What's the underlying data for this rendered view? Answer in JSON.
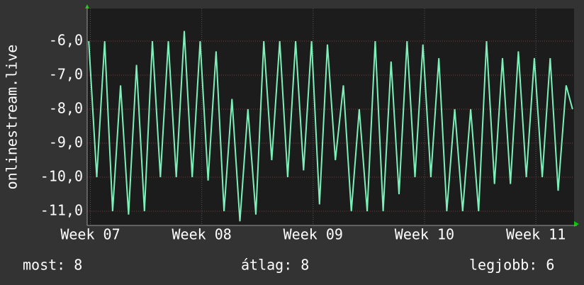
{
  "chart_data": {
    "type": "line",
    "y_label": "onlinestream.live",
    "x": [
      0.1,
      0.6,
      1.1,
      1.6,
      2.1,
      2.6,
      3.1,
      3.6,
      4.1,
      4.6,
      5.1,
      5.6,
      6.1,
      6.6,
      7.1,
      7.6,
      8.1,
      8.6,
      9.1,
      9.6,
      10.1,
      10.6,
      11.1,
      11.6,
      12.1,
      12.6,
      13.1,
      13.6,
      14.1,
      14.6,
      15.1,
      15.6,
      16.1,
      16.6,
      17.1,
      17.6,
      18.1,
      18.6,
      19.1,
      19.6,
      20.1,
      20.6,
      21.1,
      21.6,
      22.1,
      22.6,
      23.1,
      23.6,
      24.1,
      24.6,
      25.1,
      25.6,
      26.1,
      26.6,
      27.1,
      27.6,
      28.1,
      28.6,
      29.1,
      29.6,
      30.1,
      30.5
    ],
    "series": [
      {
        "color": "#7cf0b8",
        "values": [
          -6.0,
          -10.0,
          -6.0,
          -11.0,
          -7.3,
          -11.1,
          -6.7,
          -11.0,
          -6.0,
          -10.0,
          -6.0,
          -10.0,
          -5.7,
          -10.0,
          -6.0,
          -10.1,
          -6.3,
          -11.0,
          -7.7,
          -11.3,
          -8.0,
          -11.1,
          -6.0,
          -9.5,
          -6.0,
          -10.0,
          -6.0,
          -9.8,
          -6.0,
          -10.8,
          -6.1,
          -9.5,
          -7.3,
          -11.0,
          -8.0,
          -11.0,
          -6.0,
          -11.0,
          -6.6,
          -10.5,
          -6.0,
          -10.0,
          -6.1,
          -10.0,
          -6.5,
          -11.0,
          -8.0,
          -11.0,
          -8.0,
          -11.0,
          -6.0,
          -10.2,
          -6.5,
          -10.2,
          -6.3,
          -10.0,
          -6.5,
          -10.0,
          -6.5,
          -10.4,
          -7.3,
          -8.0
        ]
      }
    ],
    "xlim": [
      0,
      30.6
    ],
    "xticks": [
      {
        "value": 0.2,
        "label": "Week 07"
      },
      {
        "value": 7.2,
        "label": "Week 08"
      },
      {
        "value": 14.2,
        "label": "Week 09"
      },
      {
        "value": 21.2,
        "label": "Week 10"
      },
      {
        "value": 28.2,
        "label": "Week 11"
      }
    ],
    "ylim": [
      -11.42,
      -5.04
    ],
    "yticks": [
      {
        "value": -11,
        "label": "-11,0"
      },
      {
        "value": -10,
        "label": "-10,0"
      },
      {
        "value": -9,
        "label": "-9,0"
      },
      {
        "value": -8,
        "label": "-8,0"
      },
      {
        "value": -7,
        "label": "-7,0"
      },
      {
        "value": -6,
        "label": "-6,0"
      }
    ],
    "grid": true,
    "legend_items": [
      "most: 8",
      "átlag: 8",
      "legjobb: 6"
    ]
  }
}
